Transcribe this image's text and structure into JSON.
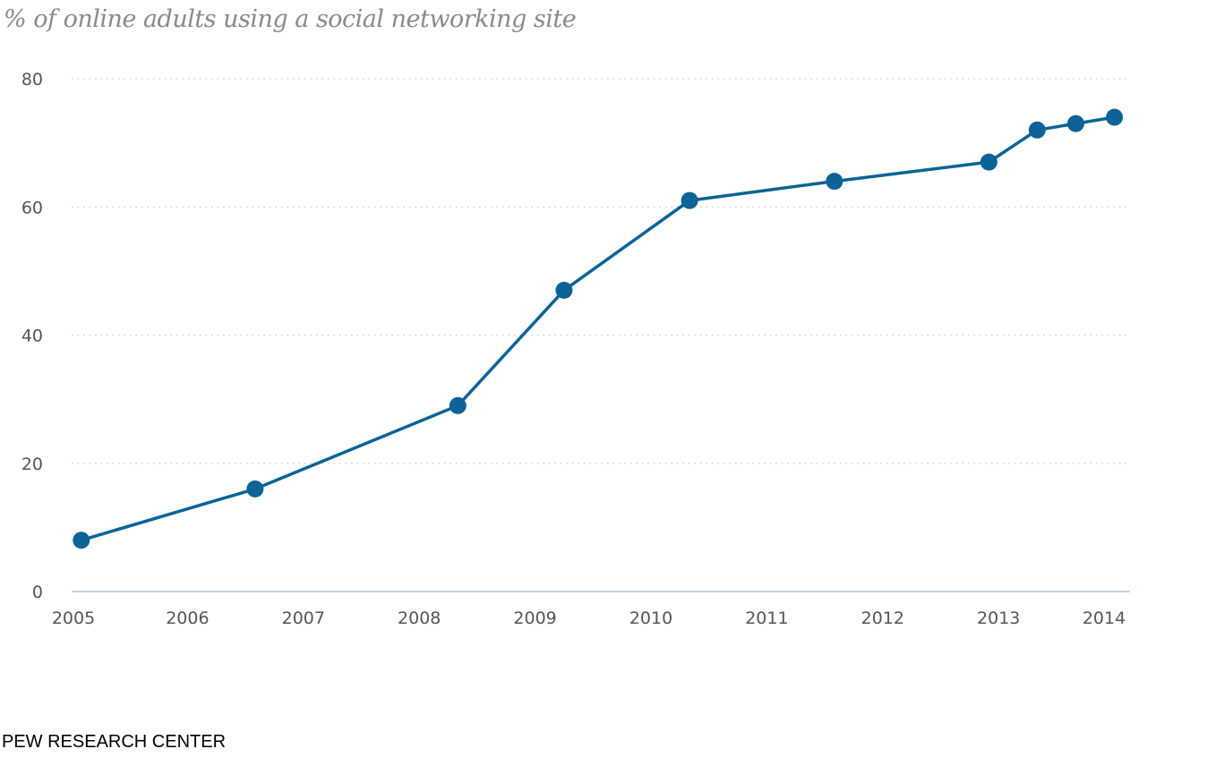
{
  "chart_data": {
    "type": "line",
    "title": "% of online adults using a social networking site",
    "xlabel": "",
    "ylabel": "",
    "ylim": [
      0,
      80
    ],
    "yticks": [
      0,
      20,
      40,
      60,
      80
    ],
    "xticks": [
      "2005",
      "2006",
      "2007",
      "2008",
      "2009",
      "2010",
      "2011",
      "2012",
      "2013",
      "2014"
    ],
    "grid": "horizontal dotted",
    "legend": "none",
    "color": "#0b6396",
    "series": [
      {
        "x": [
          "2005-02",
          "2006-08",
          "2008-05",
          "2009-04",
          "2010-05",
          "2011-08",
          "2012-12",
          "2013-05",
          "2013-09",
          "2014-01"
        ],
        "values": [
          8,
          16,
          29,
          47,
          61,
          64,
          67,
          72,
          73,
          74
        ]
      }
    ]
  },
  "source": "PEW RESEARCH CENTER"
}
